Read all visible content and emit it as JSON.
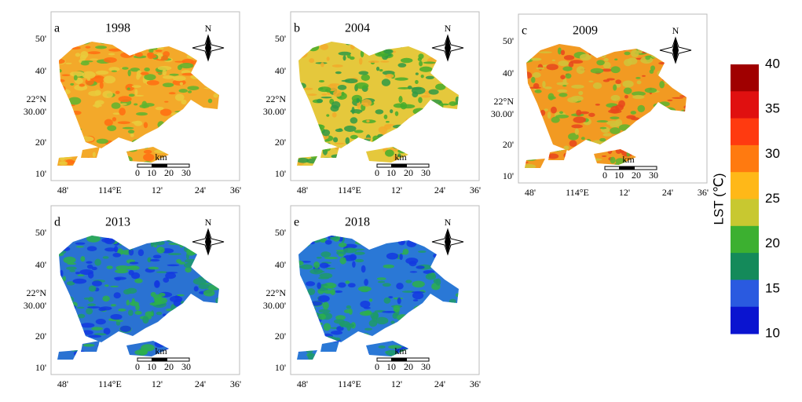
{
  "panels": [
    {
      "letter": "a",
      "year": "1998",
      "colors": [
        "#f3a92a",
        "#e9cb3c",
        "#ff6d12",
        "#5db52f"
      ]
    },
    {
      "letter": "b",
      "year": "2004",
      "colors": [
        "#e5c83c",
        "#45ad2c",
        "#f2aa2a",
        "#2f9a45"
      ]
    },
    {
      "letter": "c",
      "year": "2009",
      "colors": [
        "#f29a22",
        "#e8451c",
        "#d0c43a",
        "#5db52f"
      ]
    },
    {
      "letter": "d",
      "year": "2013",
      "colors": [
        "#2a72d2",
        "#2db04a",
        "#1338e0",
        "#1d9a6a"
      ]
    },
    {
      "letter": "e",
      "year": "2018",
      "colors": [
        "#2a78d6",
        "#2db04a",
        "#1338e0",
        "#1d9a6a"
      ]
    }
  ],
  "lat_labels": [
    "50'",
    "40'",
    "22°N",
    "30.00'",
    "20'",
    "10'"
  ],
  "lon_labels": [
    "48'",
    "114°E",
    "12'",
    "24'",
    "36'"
  ],
  "north": "N",
  "scale_bar": {
    "unit": "km",
    "ticks": [
      "0",
      "10",
      "20",
      "30"
    ]
  },
  "colorbar": {
    "title": "LST (℃)",
    "ticks": [
      40,
      35,
      30,
      25,
      20,
      15,
      10
    ],
    "colors": [
      "#a00000",
      "#e01010",
      "#ff3a10",
      "#ff7a10",
      "#ffb818",
      "#c8c830",
      "#3cb030",
      "#148a5a",
      "#2a5ae0",
      "#0a14d0"
    ]
  }
}
